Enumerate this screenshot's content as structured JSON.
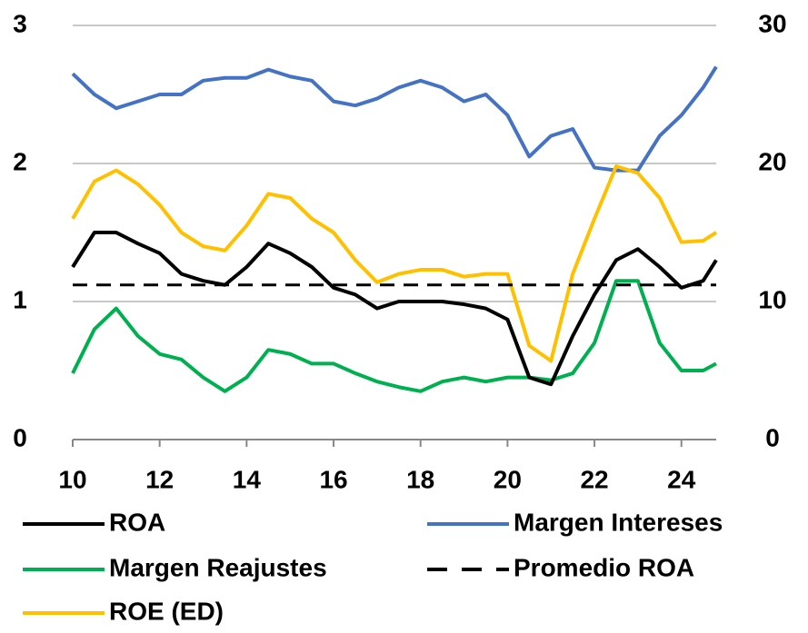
{
  "chart_data": {
    "type": "line",
    "x": [
      10,
      10.5,
      11,
      11.5,
      12,
      12.5,
      13,
      13.5,
      14,
      14.5,
      15,
      15.5,
      16,
      16.5,
      17,
      17.5,
      18,
      18.5,
      19,
      19.5,
      20,
      20.5,
      21,
      21.5,
      22,
      22.5,
      23,
      23.5,
      24,
      24.5,
      24.8
    ],
    "xlim": [
      10,
      24.8
    ],
    "xticks": [
      10,
      12,
      14,
      16,
      18,
      20,
      22,
      24
    ],
    "ylim": [
      0,
      3
    ],
    "yticks": [
      0,
      1,
      2,
      3
    ],
    "y2lim": [
      0,
      30
    ],
    "y2ticks": [
      0,
      10,
      20,
      30
    ],
    "grid": true,
    "series": [
      {
        "name": "ROA",
        "color": "#000000",
        "values": [
          1.25,
          1.5,
          1.5,
          1.42,
          1.35,
          1.2,
          1.15,
          1.12,
          1.25,
          1.42,
          1.35,
          1.25,
          1.1,
          1.05,
          0.95,
          1.0,
          1.0,
          1.0,
          0.98,
          0.95,
          0.87,
          0.45,
          0.4,
          0.75,
          1.05,
          1.3,
          1.38,
          1.25,
          1.1,
          1.15,
          1.3
        ]
      },
      {
        "name": "Margen Intereses",
        "color": "#4472c4",
        "values": [
          2.65,
          2.5,
          2.4,
          2.45,
          2.5,
          2.5,
          2.6,
          2.62,
          2.62,
          2.68,
          2.63,
          2.6,
          2.45,
          2.42,
          2.47,
          2.55,
          2.6,
          2.55,
          2.45,
          2.5,
          2.35,
          2.05,
          2.2,
          2.25,
          1.97,
          1.95,
          1.95,
          2.2,
          2.35,
          2.55,
          2.7
        ]
      },
      {
        "name": "Margen Reajustes",
        "color": "#00b050",
        "values": [
          0.48,
          0.8,
          0.95,
          0.75,
          0.62,
          0.58,
          0.45,
          0.35,
          0.45,
          0.65,
          0.62,
          0.55,
          0.55,
          0.48,
          0.42,
          0.38,
          0.35,
          0.42,
          0.45,
          0.42,
          0.45,
          0.45,
          0.43,
          0.48,
          0.7,
          1.15,
          1.15,
          0.7,
          0.5,
          0.5,
          0.55
        ]
      },
      {
        "name": "Promedio ROA",
        "color": "#000000",
        "dash": true,
        "value": 1.12
      },
      {
        "name": "ROE (ED)",
        "color": "#ffc000",
        "axis": "y2",
        "values": [
          16,
          18.7,
          19.5,
          18.5,
          17,
          15,
          14,
          13.7,
          15.5,
          17.8,
          17.5,
          16,
          15,
          13,
          11.4,
          12,
          12.3,
          12.3,
          11.8,
          12,
          12,
          6.8,
          5.7,
          12,
          16,
          19.8,
          19.3,
          17.5,
          14.3,
          14.4,
          15
        ]
      }
    ]
  }
}
